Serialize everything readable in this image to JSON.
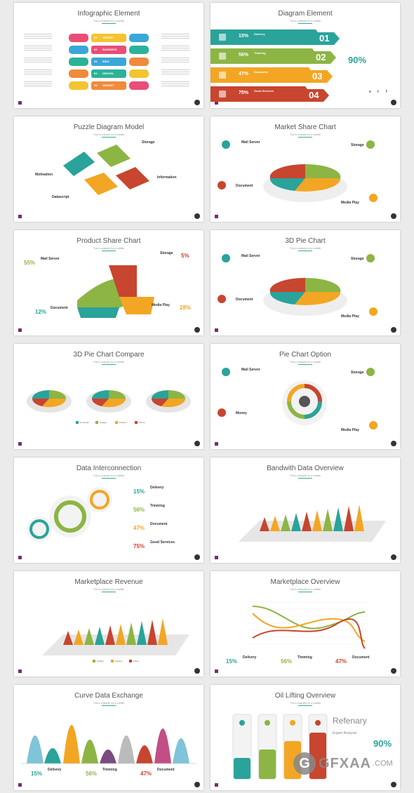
{
  "slides": [
    {
      "title": "Infographic Element",
      "sub": "This is example for a subtitle",
      "rows": [
        {
          "num": "01",
          "label": "TARGET"
        },
        {
          "num": "02",
          "label": "BUSINESS"
        },
        {
          "num": "03",
          "label": "IDEA"
        },
        {
          "num": "04",
          "label": "DESIGN"
        },
        {
          "num": "05",
          "label": "HONEST"
        }
      ]
    },
    {
      "title": "Diagram Element",
      "sub": "This is example for a subtitle",
      "rows": [
        {
          "pct": "15%",
          "label": "Delivery",
          "num": "01"
        },
        {
          "pct": "56%",
          "label": "Timming",
          "num": "02"
        },
        {
          "pct": "47%",
          "label": "Document",
          "num": "03"
        },
        {
          "pct": "75%",
          "label": "Good Services",
          "num": "04"
        }
      ],
      "big": "90%",
      "social": [
        "v",
        "t",
        "f"
      ]
    },
    {
      "title": "Puzzle Diagram Model",
      "sub": "This is example for a subtitle",
      "labels": [
        "Storage",
        "Motivation",
        "Information",
        "Datascript"
      ]
    },
    {
      "title": "Market Share Chart",
      "sub": "This is example for a subtitle",
      "labels": [
        "Mail Server",
        "Storage",
        "Document",
        "Media Play"
      ]
    },
    {
      "title": "Product Share Chart",
      "sub": "This is example for a subtitle",
      "labels": [
        "Mail Server",
        "Storage",
        "Document",
        "Media Play"
      ],
      "pcts": [
        "55%",
        "5%",
        "12%",
        "28%"
      ]
    },
    {
      "title": "3D Pie Chart",
      "sub": "This is example for a subtitle",
      "labels": [
        "Mail Server",
        "Storage",
        "Document",
        "Media Play"
      ]
    },
    {
      "title": "3D Pie Chart Compare",
      "sub": "This is example for a subtitle",
      "legend": [
        "Computer",
        "Gadget",
        "Fashion",
        "Phone"
      ]
    },
    {
      "title": "Pie Chart Option",
      "sub": "This is example for a subtitle",
      "labels": [
        "Mail Server",
        "Storage",
        "Money",
        "Media Play"
      ]
    },
    {
      "title": "Data Interconnection",
      "sub": "This is example for a subtitle",
      "rows": [
        {
          "pct": "15%",
          "label": "Delivery"
        },
        {
          "pct": "56%",
          "label": "Timming"
        },
        {
          "pct": "47%",
          "label": "Document"
        },
        {
          "pct": "75%",
          "label": "Good Services"
        }
      ]
    },
    {
      "title": "Bandwith Data Overview",
      "sub": "This is example for a subtitle"
    },
    {
      "title": "Marketplace Revenue",
      "sub": "This is example for a subtitle",
      "legend": [
        "Gadget",
        "Fashion",
        "Phone"
      ]
    },
    {
      "title": "Marketplace Overview",
      "sub": "This is example for a subtitle",
      "rows": [
        {
          "pct": "15%",
          "label": "Delivery"
        },
        {
          "pct": "56%",
          "label": "Timming"
        },
        {
          "pct": "47%",
          "label": "Document"
        }
      ]
    },
    {
      "title": "Curve Data Exchange",
      "sub": "This is example for a subtitle",
      "rows": [
        {
          "pct": "15%",
          "label": "Delivery"
        },
        {
          "pct": "56%",
          "label": "Timming"
        },
        {
          "pct": "47%",
          "label": "Document"
        }
      ]
    },
    {
      "title": "Oil Lifting Overview",
      "sub": "This is example for a subtitle",
      "heading": "Refenary",
      "sub2": "Expert Analysis",
      "big": "90%"
    }
  ],
  "watermark": {
    "logo": "G",
    "text": "GFXAA",
    "suffix": ".COM"
  },
  "colors": {
    "teal": "#2aa39a",
    "green": "#8cb544",
    "orange": "#f3a623",
    "red": "#c8452f",
    "purple": "#6b4a7f"
  }
}
